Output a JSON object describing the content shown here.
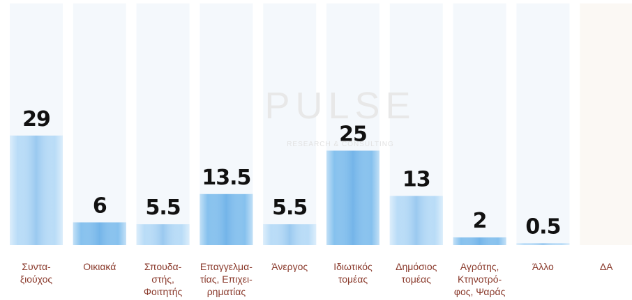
{
  "chart_data": {
    "type": "bar",
    "watermark": {
      "title": "PULSE",
      "subtitle": "RESEARCH & CONSULTING"
    },
    "categories": [
      "Συντα-\nξιούχος",
      "Οικιακά",
      "Σπουδα-\nστής,\nΦοιτητής",
      "Επαγγελμα-\nτίας, Επιχει-\nρηματίας",
      "Άνεργος",
      "Ιδιωτικός\nτομέας",
      "Δημόσιος\nτομέας",
      "Αγρότης,\nΚτηνοτρό-\nφος, Ψαράς",
      "Άλλο",
      "ΔΑ"
    ],
    "values": [
      29,
      6,
      5.5,
      13.5,
      5.5,
      25,
      13,
      2,
      0.5,
      null
    ],
    "colors": [
      "#b9dcf7",
      "#86c1ee",
      "#b9dcf7",
      "#86c1ee",
      "#b9dcf7",
      "#86c1ee",
      "#b9dcf7",
      "#86c1ee",
      "#b9dcf7",
      "#b9dcf7"
    ],
    "ylim": [
      0,
      64
    ]
  }
}
